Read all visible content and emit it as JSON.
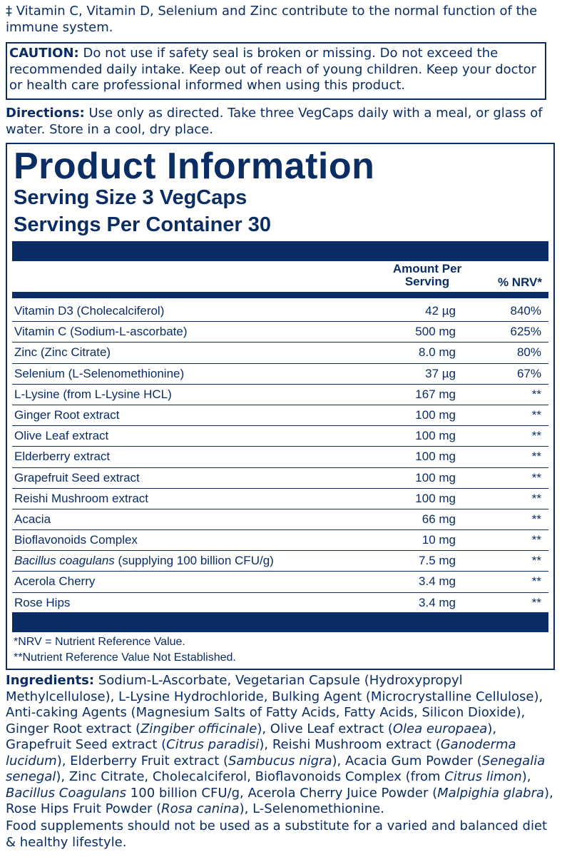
{
  "immune_note": "‡ Vitamin C, Vitamin D, Selenium and Zinc contribute to the normal function of the immune system.",
  "caution": {
    "label": "CAUTION:",
    "text": " Do not use if safety seal is broken or missing. Do not exceed the recommended daily intake. Keep out of reach of young children. Keep your doctor or health care professional informed when using this product."
  },
  "directions": {
    "label": "Directions:",
    "text": " Use only as directed. Take three VegCaps daily with a meal, or glass of water. Store in a cool, dry place."
  },
  "product_info": {
    "title": "Product Information",
    "serving_size": "Serving Size 3 VegCaps",
    "servings_per_container": "Servings Per Container 30",
    "header_amount": "Amount Per Serving",
    "header_nrv": "% NRV*",
    "rows": [
      {
        "name": "Vitamin D3 (Cholecalciferol)",
        "amount": "42 µg",
        "nrv": "840%"
      },
      {
        "name": "Vitamin C (Sodium-L-ascorbate)",
        "amount": "500 mg",
        "nrv": "625%"
      },
      {
        "name": "Zinc (Zinc Citrate)",
        "amount": "8.0 mg",
        "nrv": "80%"
      },
      {
        "name": "Selenium (L-Selenomethionine)",
        "amount": "37 µg",
        "nrv": "67%"
      },
      {
        "name": "L-Lysine (from L-Lysine HCL)",
        "amount": "167 mg",
        "nrv": "**"
      },
      {
        "name": "Ginger Root extract",
        "amount": "100 mg",
        "nrv": "**"
      },
      {
        "name": "Olive Leaf extract",
        "amount": "100 mg",
        "nrv": "**"
      },
      {
        "name": "Elderberry extract",
        "amount": "100 mg",
        "nrv": "**"
      },
      {
        "name": "Grapefruit Seed extract",
        "amount": "100 mg",
        "nrv": "**"
      },
      {
        "name": "Reishi Mushroom extract",
        "amount": "100 mg",
        "nrv": "**"
      },
      {
        "name": "Acacia",
        "amount": "66 mg",
        "nrv": "**"
      },
      {
        "name": "Bioflavonoids Complex",
        "amount": "10 mg",
        "nrv": "**"
      },
      {
        "name_italic": "Bacillus coagulans",
        "name": " (supplying 100 billion CFU/g)",
        "amount": "7.5 mg",
        "nrv": "**"
      },
      {
        "name": "Acerola Cherry",
        "amount": "3.4 mg",
        "nrv": "**"
      },
      {
        "name": "Rose Hips",
        "amount": "3.4 mg",
        "nrv": "**"
      }
    ],
    "footnote_nrv": "*NRV = Nutrient Reference Value.",
    "footnote_not_established": "**Nutrient Reference Value Not Established."
  },
  "ingredients": {
    "label": "Ingredients:",
    "parts": [
      {
        "t": " Sodium-L-Ascorbate, Vegetarian Capsule (Hydroxypropyl Methylcellulose), L-Lysine Hydrochloride, Bulking Agent (Microcrystalline Cellulose), Anti-caking Agents (Magnesium Salts of Fatty Acids, Fatty Acids, Silicon Dioxide), Ginger Root extract ("
      },
      {
        "t": "Zingiber officinale",
        "i": true
      },
      {
        "t": "), Olive Leaf extract ("
      },
      {
        "t": "Olea europaea",
        "i": true
      },
      {
        "t": "), Grapefruit Seed extract ("
      },
      {
        "t": "Citrus paradisi",
        "i": true
      },
      {
        "t": "), Reishi Mushroom extract ("
      },
      {
        "t": "Ganoderma lucidum",
        "i": true
      },
      {
        "t": "), Elderberry Fruit extract ("
      },
      {
        "t": "Sambucus nigra",
        "i": true
      },
      {
        "t": "), Acacia Gum Powder ("
      },
      {
        "t": "Senegalia senegal",
        "i": true
      },
      {
        "t": "), Zinc Citrate, Cholecalciferol, Bioflavonoids Complex (from "
      },
      {
        "t": "Citrus limon",
        "i": true
      },
      {
        "t": "), "
      },
      {
        "t": "Bacillus Coagulans",
        "i": true
      },
      {
        "t": " 100 billion CFU/g, Acerola Cherry Juice Powder ("
      },
      {
        "t": "Malpighia glabra",
        "i": true
      },
      {
        "t": "), Rose Hips Fruit Powder ("
      },
      {
        "t": "Rosa canina",
        "i": true
      },
      {
        "t": "), L-Selenomethionine."
      }
    ]
  },
  "food_supplement_note": "Food supplements should not be used as a substitute for a varied and balanced diet & healthy lifestyle."
}
